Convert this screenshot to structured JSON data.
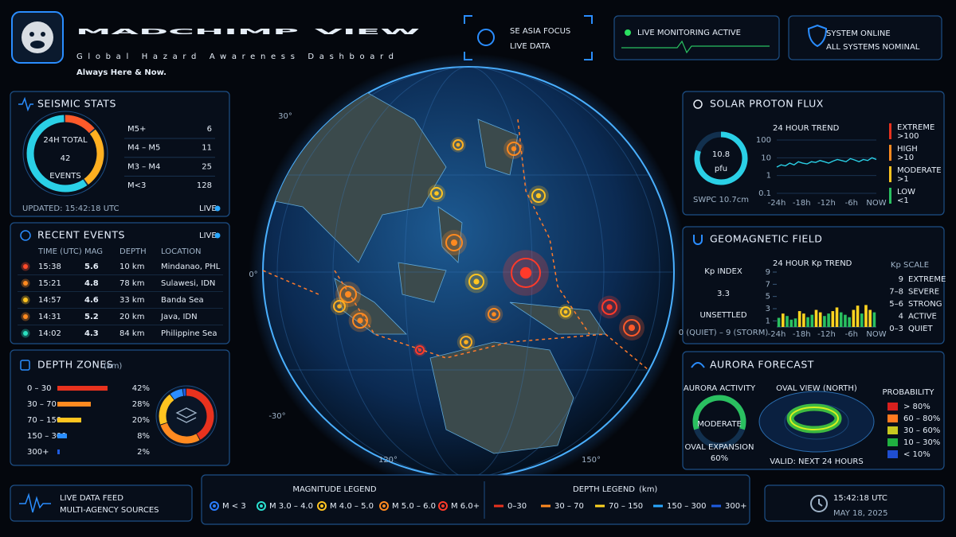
{
  "header": {
    "title_a": "MADCHIMP",
    "title_b": "VIEW",
    "subtitle": "Global Hazard Awareness Dashboard",
    "tagline": "Always Here & Now."
  },
  "status": {
    "focus": "SE ASIA FOCUS",
    "focus_sub": "LIVE DATA",
    "monitoring": "LIVE MONITORING ACTIVE",
    "system": "SYSTEM ONLINE",
    "system_sub": "ALL SYSTEMS NOMINAL"
  },
  "seismic": {
    "title": "SEISMIC STATS",
    "total_label": "24H TOTAL",
    "total": 42,
    "total_unit": "EVENTS",
    "rows": [
      {
        "label": "M5+",
        "count": 6,
        "color": "#ff5a2a"
      },
      {
        "label": "M4 – M5",
        "count": 11,
        "color": "#ffb020"
      },
      {
        "label": "M3 – M4",
        "count": 25,
        "color": "#2ad0e6"
      },
      {
        "label": "M<3",
        "count": 128,
        "color": "#3a8dff"
      }
    ],
    "updated": "UPDATED: 15:42:18 UTC",
    "live": "LIVE"
  },
  "events": {
    "title": "RECENT EVENTS",
    "live": "LIVE",
    "columns": [
      "TIME (UTC)",
      "MAG",
      "DEPTH",
      "LOCATION"
    ],
    "rows": [
      {
        "time": "15:38",
        "mag": 5.6,
        "depth": "10 km",
        "location": "Mindanao, PHL",
        "color": "#ff4a2a",
        "depth_color": "#ff9a2a"
      },
      {
        "time": "15:21",
        "mag": 4.8,
        "depth": "78 km",
        "location": "Sulawesi, IDN",
        "color": "#ff8a20",
        "depth_color": "#4aa8ff"
      },
      {
        "time": "14:57",
        "mag": 4.6,
        "depth": "33 km",
        "location": "Banda Sea",
        "color": "#ffc420",
        "depth_color": "#e6eef8"
      },
      {
        "time": "14:31",
        "mag": 5.2,
        "depth": "20 km",
        "location": "Java, IDN",
        "color": "#ff8a20",
        "depth_color": "#e6eef8"
      },
      {
        "time": "14:02",
        "mag": 4.3,
        "depth": "84 km",
        "location": "Philippine Sea",
        "color": "#2ae0c0",
        "depth_color": "#4aa8ff"
      }
    ]
  },
  "depth_zones": {
    "title": "DEPTH ZONES",
    "unit": "(km)",
    "rows": [
      {
        "range": "0 – 30",
        "percent": 42,
        "percent_label": "42%",
        "color": "#e8321e"
      },
      {
        "range": "30 – 70",
        "percent": 28,
        "percent_label": "28%",
        "color": "#ff8a20"
      },
      {
        "range": "70 – 150",
        "percent": 20,
        "percent_label": "20%",
        "color": "#ffc420"
      },
      {
        "range": "150 – 300",
        "percent": 8,
        "percent_label": "8%",
        "color": "#2a8dff"
      },
      {
        "range": "300+",
        "percent": 2,
        "percent_label": "2%",
        "color": "#1f5ce0"
      }
    ]
  },
  "map": {
    "lat_labels": [
      "30°",
      "0°",
      "-30°"
    ],
    "lon_labels": [
      "120°",
      "150°"
    ]
  },
  "solar": {
    "title": "SOLAR PROTON FLUX",
    "value": 10.8,
    "unit": "pfu",
    "source": "SWPC 10.7cm",
    "trend_title": "24 HOUR TREND",
    "log_scale": true,
    "ylim": [
      0.1,
      100
    ],
    "yticks": [
      0.1,
      1,
      10,
      100
    ],
    "xlabels": [
      "-24h",
      "-18h",
      "-12h",
      "-6h",
      "NOW"
    ],
    "color": "#2ad0e6",
    "values": [
      3,
      4,
      3.5,
      5,
      4,
      6,
      5,
      4.5,
      6,
      5.5,
      7,
      6,
      5,
      6.5,
      8,
      7,
      6,
      9,
      7.5,
      6,
      8,
      7,
      10,
      8
    ],
    "levels": [
      {
        "name": "EXTREME",
        "threshold": ">100",
        "color": "#e8321e"
      },
      {
        "name": "HIGH",
        "threshold": ">10",
        "color": "#ff8a20"
      },
      {
        "name": "MODERATE",
        "threshold": ">1",
        "color": "#ffc420"
      },
      {
        "name": "LOW",
        "threshold": "<1",
        "color": "#2ac060"
      }
    ]
  },
  "geomagnetic": {
    "title": "GEOMAGNETIC FIELD",
    "index_label": "Kp INDEX",
    "value": 3.3,
    "status": "UNSETTLED",
    "range_note": "0 (QUIET) – 9 (STORM)",
    "trend_title": "24 HOUR Kp TREND",
    "ylim": [
      0,
      9
    ],
    "yticks": [
      1,
      3,
      5,
      7,
      9
    ],
    "xlabels": [
      "-24h",
      "-18h",
      "-12h",
      "-6h",
      "NOW"
    ],
    "values": [
      1.5,
      2.2,
      1.8,
      1.2,
      1.4,
      2.6,
      2.2,
      1.6,
      2.0,
      2.8,
      2.4,
      1.8,
      2.2,
      2.6,
      3.2,
      2.4,
      2.0,
      1.6,
      2.8,
      3.5,
      2.2,
      3.6,
      2.8,
      2.4
    ],
    "colors": [
      "#2ac060",
      "#ffd420",
      "#2ac060",
      "#2ac060",
      "#2ac060",
      "#ffd420",
      "#ffd420",
      "#2ac060",
      "#2ac060",
      "#ffd420",
      "#ffd420",
      "#2ac060",
      "#2ac060",
      "#ffd420",
      "#ffd420",
      "#2ac060",
      "#2ac060",
      "#2ac060",
      "#ffd420",
      "#ffd420",
      "#2ac060",
      "#ffd420",
      "#ffd420",
      "#2ac060"
    ],
    "scale_title": "Kp SCALE",
    "scale": [
      {
        "range": "9",
        "label": "EXTREME",
        "color": "#ff3a2a"
      },
      {
        "range": "7–8",
        "label": "SEVERE",
        "color": "#ff7a2a"
      },
      {
        "range": "5–6",
        "label": "STRONG",
        "color": "#ffb020"
      },
      {
        "range": "4",
        "label": "ACTIVE",
        "color": "#ffe040"
      },
      {
        "range": "0–3",
        "label": "QUIET",
        "color": "#2ac060"
      }
    ]
  },
  "aurora": {
    "title": "AURORA FORECAST",
    "activity_label": "AURORA ACTIVITY",
    "level": "MODERATE",
    "expansion_label": "OVAL EXPANSION",
    "expansion": 60,
    "expansion_text": "60%",
    "oval_title": "OVAL VIEW (NORTH)",
    "valid": "VALID: NEXT 24 HOURS",
    "prob_title": "PROBABILITY",
    "prob": [
      {
        "label": "> 80%",
        "color": "#d8201e"
      },
      {
        "label": "60 – 80%",
        "color": "#ff7a20"
      },
      {
        "label": "30 – 60%",
        "color": "#c8c820"
      },
      {
        "label": "10 – 30%",
        "color": "#20b040"
      },
      {
        "label": "< 10%",
        "color": "#1f4ed0"
      }
    ]
  },
  "footer": {
    "feed": "LIVE DATA FEED",
    "feed_sub": "MULTI-AGENCY SOURCES",
    "mag_title": "MAGNITUDE LEGEND",
    "mag": [
      {
        "label": "M < 3",
        "color": "#2a7dff"
      },
      {
        "label": "M 3.0 – 4.0",
        "color": "#2ae0d0"
      },
      {
        "label": "M 4.0 – 5.0",
        "color": "#ffc420"
      },
      {
        "label": "M 5.0 – 6.0",
        "color": "#ff8a20"
      },
      {
        "label": "M 6.0+",
        "color": "#ff3a2a"
      }
    ],
    "depth_title": "DEPTH LEGEND",
    "depth_unit": "(km)",
    "depth": [
      {
        "label": "0–30",
        "color": "#e8321e"
      },
      {
        "label": "30 – 70",
        "color": "#ff8a20"
      },
      {
        "label": "70 – 150",
        "color": "#ffd420"
      },
      {
        "label": "150 – 300",
        "color": "#2aa8ff"
      },
      {
        "label": "300+",
        "color": "#1f5ce0"
      }
    ],
    "time": "15:42:18 UTC",
    "date": "MAY 18, 2025"
  }
}
